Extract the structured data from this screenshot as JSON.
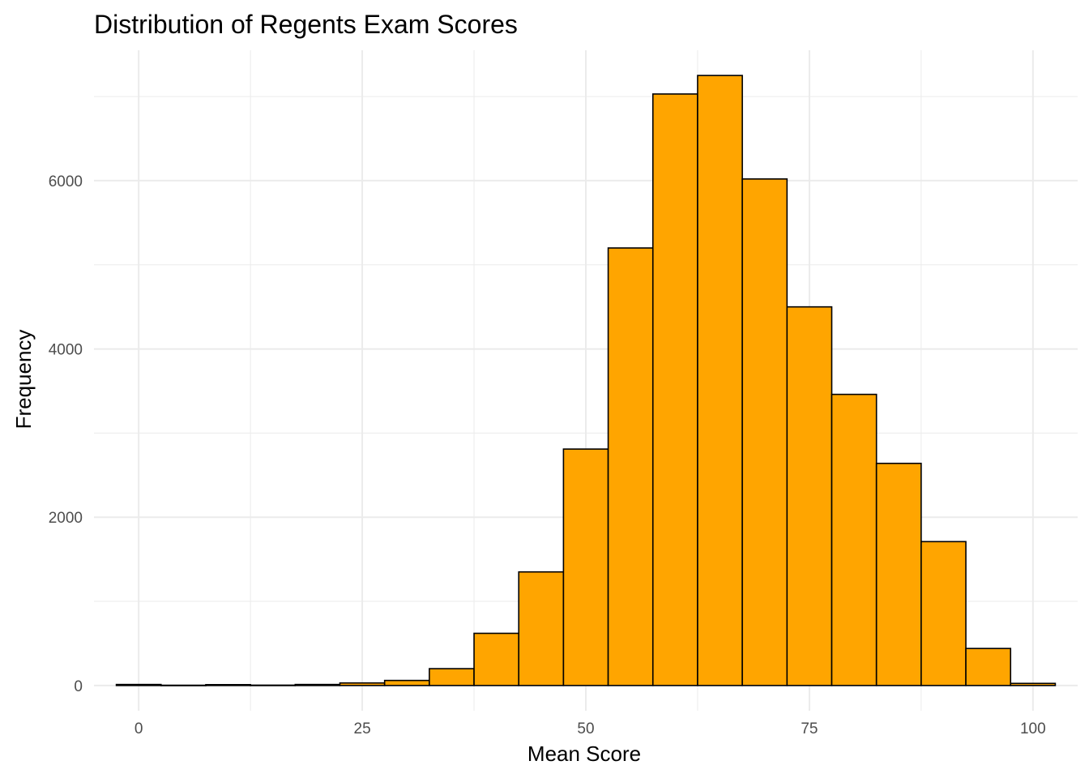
{
  "chart_data": {
    "type": "bar",
    "title": "Distribution of Regents Exam Scores",
    "xlabel": "Mean Score",
    "ylabel": "Frequency",
    "xlim": [
      -5,
      105
    ],
    "ylim": [
      -300,
      7550
    ],
    "x_ticks": [
      0,
      25,
      50,
      75,
      100
    ],
    "y_ticks": [
      0,
      2000,
      4000,
      6000
    ],
    "x_tick_labels": [
      "0",
      "25",
      "50",
      "75",
      "100"
    ],
    "y_tick_labels": [
      "0",
      "2000",
      "4000",
      "6000"
    ],
    "grid": true,
    "bin_width": 5,
    "bins": [
      {
        "start": -2.5,
        "end": 2.5,
        "count": 12
      },
      {
        "start": 2.5,
        "end": 7.5,
        "count": 3
      },
      {
        "start": 7.5,
        "end": 12.5,
        "count": 10
      },
      {
        "start": 12.5,
        "end": 17.5,
        "count": 4
      },
      {
        "start": 17.5,
        "end": 22.5,
        "count": 12
      },
      {
        "start": 22.5,
        "end": 27.5,
        "count": 30
      },
      {
        "start": 27.5,
        "end": 32.5,
        "count": 60
      },
      {
        "start": 32.5,
        "end": 37.5,
        "count": 200
      },
      {
        "start": 37.5,
        "end": 42.5,
        "count": 620
      },
      {
        "start": 42.5,
        "end": 47.5,
        "count": 1350
      },
      {
        "start": 47.5,
        "end": 52.5,
        "count": 2810
      },
      {
        "start": 52.5,
        "end": 57.5,
        "count": 5200
      },
      {
        "start": 57.5,
        "end": 62.5,
        "count": 7030
      },
      {
        "start": 62.5,
        "end": 67.5,
        "count": 7250
      },
      {
        "start": 67.5,
        "end": 72.5,
        "count": 6020
      },
      {
        "start": 72.5,
        "end": 77.5,
        "count": 4500
      },
      {
        "start": 77.5,
        "end": 82.5,
        "count": 3460
      },
      {
        "start": 82.5,
        "end": 87.5,
        "count": 2640
      },
      {
        "start": 87.5,
        "end": 92.5,
        "count": 1710
      },
      {
        "start": 92.5,
        "end": 97.5,
        "count": 440
      },
      {
        "start": 97.5,
        "end": 102.5,
        "count": 25
      }
    ],
    "bar_fill": "#FFA500",
    "bar_stroke": "#000000",
    "grid_color": "#EBEBEB",
    "background": "#FFFFFF"
  }
}
